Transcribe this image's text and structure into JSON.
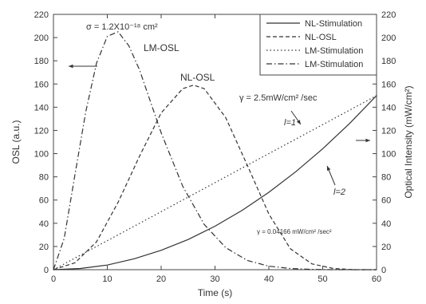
{
  "chart_data": {
    "type": "line",
    "xlabel": "Time (s)",
    "ylabel": "OSL (a.u.)",
    "y2label": "Optical Intensity (mW/cm²)",
    "xlim": [
      0,
      60
    ],
    "ylim": [
      0,
      220
    ],
    "y2lim": [
      0,
      220
    ],
    "xticks": [
      0,
      10,
      20,
      30,
      40,
      50,
      60
    ],
    "yticks": [
      0,
      20,
      40,
      60,
      80,
      100,
      120,
      140,
      160,
      180,
      200,
      220
    ],
    "grid": false,
    "legend_position": "top-right",
    "legend": [
      {
        "label": "NL-Stimulation",
        "style": "solid"
      },
      {
        "label": "NL-OSL",
        "style": "dashed"
      },
      {
        "label": "LM-Stimulation",
        "style": "dotted"
      },
      {
        "label": "LM-Stimulation",
        "style": "dash-dot"
      }
    ],
    "series": [
      {
        "name": "NL-Stimulation",
        "axis": "right",
        "style": "solid",
        "x": [
          0,
          5,
          10,
          15,
          20,
          25,
          30,
          35,
          40,
          45,
          50,
          55,
          60
        ],
        "y": [
          0,
          1,
          4,
          9.4,
          16.7,
          26,
          37.5,
          51,
          66.7,
          84.4,
          104.2,
          126,
          150
        ]
      },
      {
        "name": "NL-OSL",
        "axis": "left",
        "style": "dashed",
        "x": [
          0,
          4,
          8,
          12,
          16,
          20,
          24,
          26,
          28,
          32,
          36,
          40,
          44,
          48,
          52,
          56,
          60
        ],
        "y": [
          0,
          6,
          24,
          58,
          98,
          135,
          156,
          159,
          156,
          131,
          90,
          48,
          18,
          5,
          1,
          0,
          0
        ]
      },
      {
        "name": "LM-Stimulation",
        "axis": "right",
        "style": "dotted",
        "x": [
          0,
          10,
          20,
          30,
          40,
          50,
          60
        ],
        "y": [
          0,
          25,
          50,
          75,
          100,
          125,
          150
        ]
      },
      {
        "name": "LM-Stimulation",
        "axis": "right",
        "style": "dash-dot",
        "x": [
          0,
          2,
          4,
          6,
          8,
          10,
          12,
          14,
          16,
          18,
          20,
          24,
          28,
          32,
          36,
          40,
          44,
          48,
          52,
          56,
          60
        ],
        "y": [
          0,
          27,
          82,
          136,
          178,
          201,
          205,
          193,
          172,
          145,
          118,
          72,
          39,
          19,
          8,
          3,
          1,
          0.3,
          0,
          0,
          0
        ]
      }
    ],
    "annotations": {
      "sigma": "σ = 1.2X10⁻¹⁸ cm²",
      "lm_osl": "LM-OSL",
      "nl_osl": "NL-OSL",
      "gamma1": "γ = 2.5mW/cm² /sec",
      "l1": "l=1",
      "l2": "l=2",
      "gamma2": "γ = 0.04166 mW/cm² /sec²"
    }
  }
}
